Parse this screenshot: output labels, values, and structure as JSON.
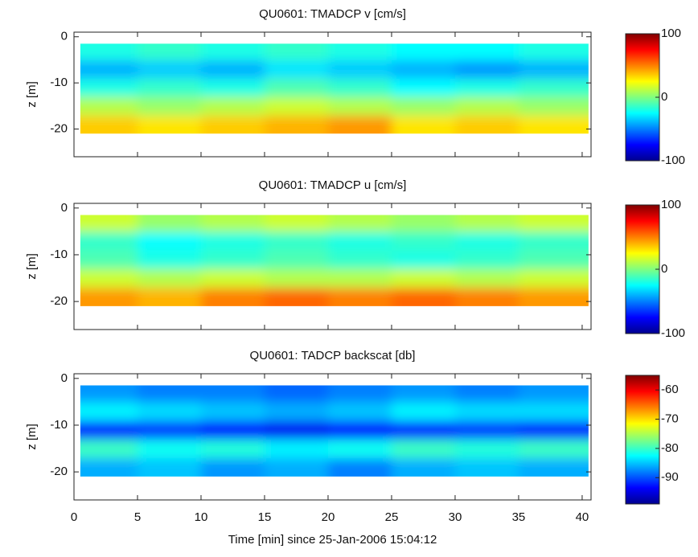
{
  "chart_data": [
    {
      "type": "heatmap",
      "title": "QU0601: TMADCP v [cm/s]",
      "ylabel": "z [m]",
      "xlim": [
        0,
        40.7
      ],
      "xticks": [
        0,
        5,
        10,
        15,
        20,
        25,
        30,
        35,
        40
      ],
      "ylim": [
        -26,
        1
      ],
      "yticks": [
        -20,
        -10,
        0
      ],
      "xbins": [
        0.5,
        5,
        10,
        15,
        20,
        25,
        30,
        35,
        40.5
      ],
      "ybins": [
        -21,
        -17,
        -13,
        -9,
        -5,
        -1.5
      ],
      "values": [
        [
          35,
          30,
          35,
          40,
          45,
          30,
          35,
          30
        ],
        [
          10,
          5,
          10,
          15,
          10,
          5,
          10,
          5
        ],
        [
          -20,
          -15,
          -20,
          -10,
          -15,
          -25,
          -20,
          -15
        ],
        [
          -40,
          -35,
          -40,
          -30,
          -35,
          -40,
          -45,
          -40
        ],
        [
          -20,
          -15,
          -20,
          -15,
          -20,
          -25,
          -25,
          -20
        ]
      ],
      "clim": [
        -100,
        100
      ],
      "cticks": [
        -100,
        0,
        100
      ]
    },
    {
      "type": "heatmap",
      "title": "QU0601: TMADCP u [cm/s]",
      "ylabel": "z [m]",
      "xlim": [
        0,
        40.7
      ],
      "xticks": [
        0,
        5,
        10,
        15,
        20,
        25,
        30,
        35,
        40
      ],
      "ylim": [
        -26,
        1
      ],
      "yticks": [
        -20,
        -10,
        0
      ],
      "xbins": [
        0.5,
        5,
        10,
        15,
        20,
        25,
        30,
        35,
        40.5
      ],
      "ybins": [
        -21,
        -17,
        -13,
        -9,
        -5,
        -1.5
      ],
      "values": [
        [
          45,
          40,
          50,
          55,
          50,
          55,
          50,
          45
        ],
        [
          15,
          10,
          15,
          10,
          10,
          15,
          10,
          15
        ],
        [
          -10,
          -20,
          -15,
          -10,
          -15,
          -20,
          -15,
          -10
        ],
        [
          -15,
          -25,
          -20,
          -15,
          -20,
          -15,
          -20,
          -15
        ],
        [
          15,
          5,
          10,
          15,
          10,
          5,
          10,
          15
        ]
      ],
      "clim": [
        -100,
        100
      ],
      "cticks": [
        -100,
        0,
        100
      ]
    },
    {
      "type": "heatmap",
      "title": "QU0601: TADCP backscat [db]",
      "ylabel": "z [m]",
      "xlabel": "Time [min] since 25-Jan-2006 15:04:12",
      "xlim": [
        0,
        40.7
      ],
      "xticks": [
        0,
        5,
        10,
        15,
        20,
        25,
        30,
        35,
        40
      ],
      "ylim": [
        -26,
        1
      ],
      "yticks": [
        -20,
        -10,
        0
      ],
      "xbins": [
        0.5,
        5,
        10,
        15,
        20,
        25,
        30,
        35,
        40.5
      ],
      "ybins": [
        -21,
        -17,
        -13,
        -9,
        -5,
        -1.5
      ],
      "values": [
        [
          -86,
          -85,
          -87,
          -86,
          -88,
          -86,
          -85,
          -86
        ],
        [
          -80,
          -82,
          -81,
          -83,
          -82,
          -80,
          -81,
          -80
        ],
        [
          -92,
          -91,
          -93,
          -94,
          -93,
          -92,
          -91,
          -92
        ],
        [
          -83,
          -84,
          -85,
          -86,
          -85,
          -83,
          -84,
          -84
        ],
        [
          -87,
          -88,
          -88,
          -89,
          -88,
          -87,
          -88,
          -87
        ]
      ],
      "clim": [
        -99,
        -55
      ],
      "cticks": [
        -60,
        -70,
        -80,
        -90
      ]
    }
  ]
}
